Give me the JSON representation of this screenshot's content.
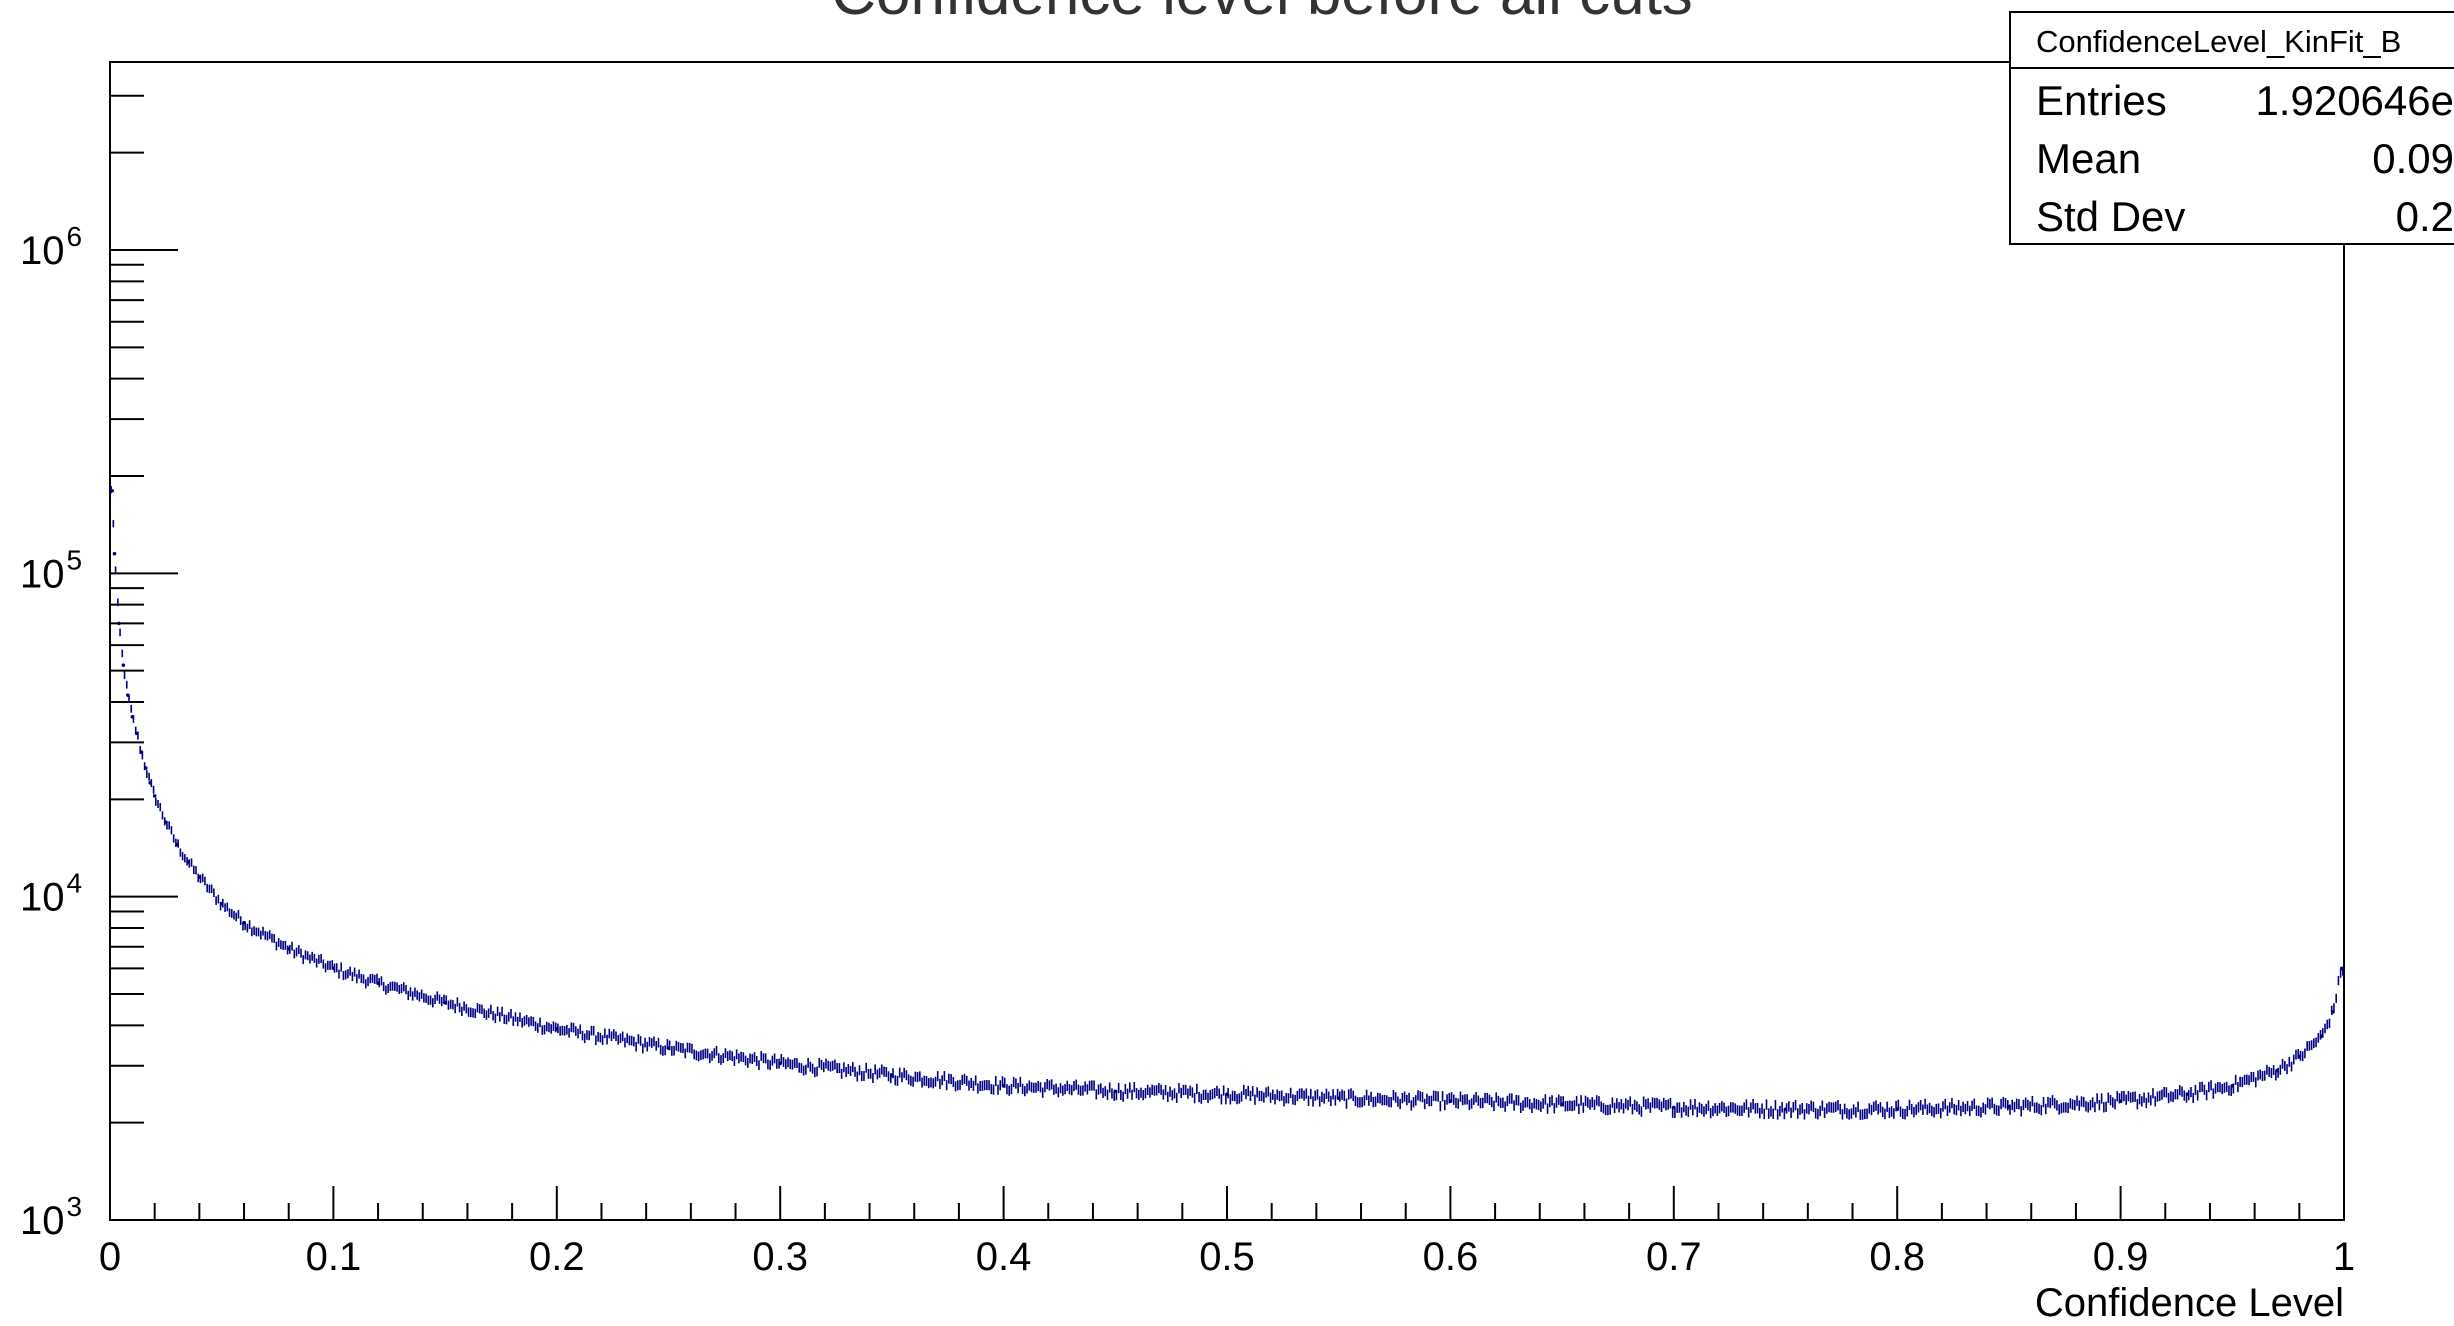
{
  "chart_data": {
    "type": "scatter",
    "title": "Confidence level before all cuts",
    "xlabel": "Confidence Level",
    "ylabel": "",
    "xlim": [
      0,
      1
    ],
    "ylim": [
      1000,
      4000000
    ],
    "yscale": "log",
    "grid": false,
    "x_ticks": [
      "0",
      "0.1",
      "0.2",
      "0.3",
      "0.4",
      "0.5",
      "0.6",
      "0.7",
      "0.8",
      "0.9",
      "1"
    ],
    "y_ticks": [
      {
        "base": "10",
        "exp": "3"
      },
      {
        "base": "10",
        "exp": "4"
      },
      {
        "base": "10",
        "exp": "5"
      },
      {
        "base": "10",
        "exp": "6"
      }
    ],
    "series": [
      {
        "color": "#000080",
        "x": [
          0.001,
          0.002,
          0.004,
          0.006,
          0.008,
          0.01,
          0.012,
          0.014,
          0.016,
          0.018,
          0.02,
          0.025,
          0.03,
          0.035,
          0.04,
          0.05,
          0.06,
          0.08,
          0.1,
          0.12,
          0.15,
          0.2,
          0.25,
          0.3,
          0.35,
          0.4,
          0.45,
          0.5,
          0.55,
          0.6,
          0.65,
          0.7,
          0.75,
          0.8,
          0.85,
          0.9,
          0.93,
          0.95,
          0.97,
          0.98,
          0.99,
          0.995,
          0.999
        ],
        "y": [
          180000,
          115000,
          70000,
          52000,
          42000,
          36000,
          32000,
          28000,
          25000,
          22500,
          20500,
          17000,
          14500,
          12800,
          11500,
          9500,
          8300,
          6900,
          6000,
          5400,
          4700,
          3900,
          3400,
          3050,
          2800,
          2600,
          2500,
          2450,
          2380,
          2330,
          2280,
          2230,
          2200,
          2200,
          2240,
          2330,
          2450,
          2600,
          2900,
          3200,
          3700,
          4400,
          6000
        ]
      }
    ]
  },
  "stats_box": {
    "title": "ConfidenceLevel_KinFit_B",
    "rows": [
      {
        "label": "Entries",
        "value": "1.920646e"
      },
      {
        "label": "Mean",
        "value": "0.09"
      },
      {
        "label": "Std Dev",
        "value": "0.2"
      }
    ]
  }
}
